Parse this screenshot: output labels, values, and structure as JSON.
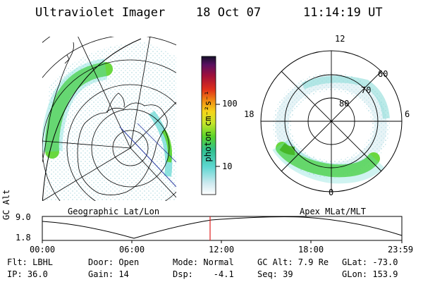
{
  "header": {
    "instrument": "Ultraviolet Imager",
    "date": "18 Oct 07",
    "time": "11:14:19 UT"
  },
  "colorbar": {
    "unit_label": "photon cm⁻²s⁻¹",
    "ticks": [
      "100",
      "10"
    ],
    "scale": "log"
  },
  "geo_panel": {
    "label": "Geographic Lat/Lon"
  },
  "polar_panel": {
    "label": "Apex MLat/MLT",
    "mlt_labels": [
      "12",
      "18",
      "6",
      "0"
    ],
    "lat_labels": [
      "60",
      "70",
      "80"
    ]
  },
  "orbit": {
    "y_label": "GC Alt",
    "y_ticks": [
      "9.0",
      "1.8"
    ],
    "x_ticks": [
      "00:00",
      "06:00",
      "12:00",
      "18:00",
      "23:59"
    ],
    "marker_time": "11:14"
  },
  "footer": {
    "row1": [
      {
        "key": "flt",
        "text": "Flt: LBHL"
      },
      {
        "key": "door",
        "text": "Door: Open"
      },
      {
        "key": "mode",
        "text": "Mode: Normal"
      },
      {
        "key": "gcalt",
        "text": "GC Alt: 7.9 Re"
      },
      {
        "key": "glat",
        "text": "GLat: -73.0"
      }
    ],
    "row2": [
      {
        "key": "ip",
        "text": "IP: 36.0"
      },
      {
        "key": "gain",
        "text": "Gain: 14"
      },
      {
        "key": "dsp",
        "text": "Dsp:    -4.1"
      },
      {
        "key": "seq",
        "text": "Seq: 39"
      },
      {
        "key": "glon",
        "text": "GLon: 153.9"
      }
    ]
  },
  "colors": {
    "auroral_green": "#5ad42a",
    "auroral_cyan": "#5fd7d2",
    "background_dots": "#c8e6ea",
    "marker": "#e02020"
  }
}
